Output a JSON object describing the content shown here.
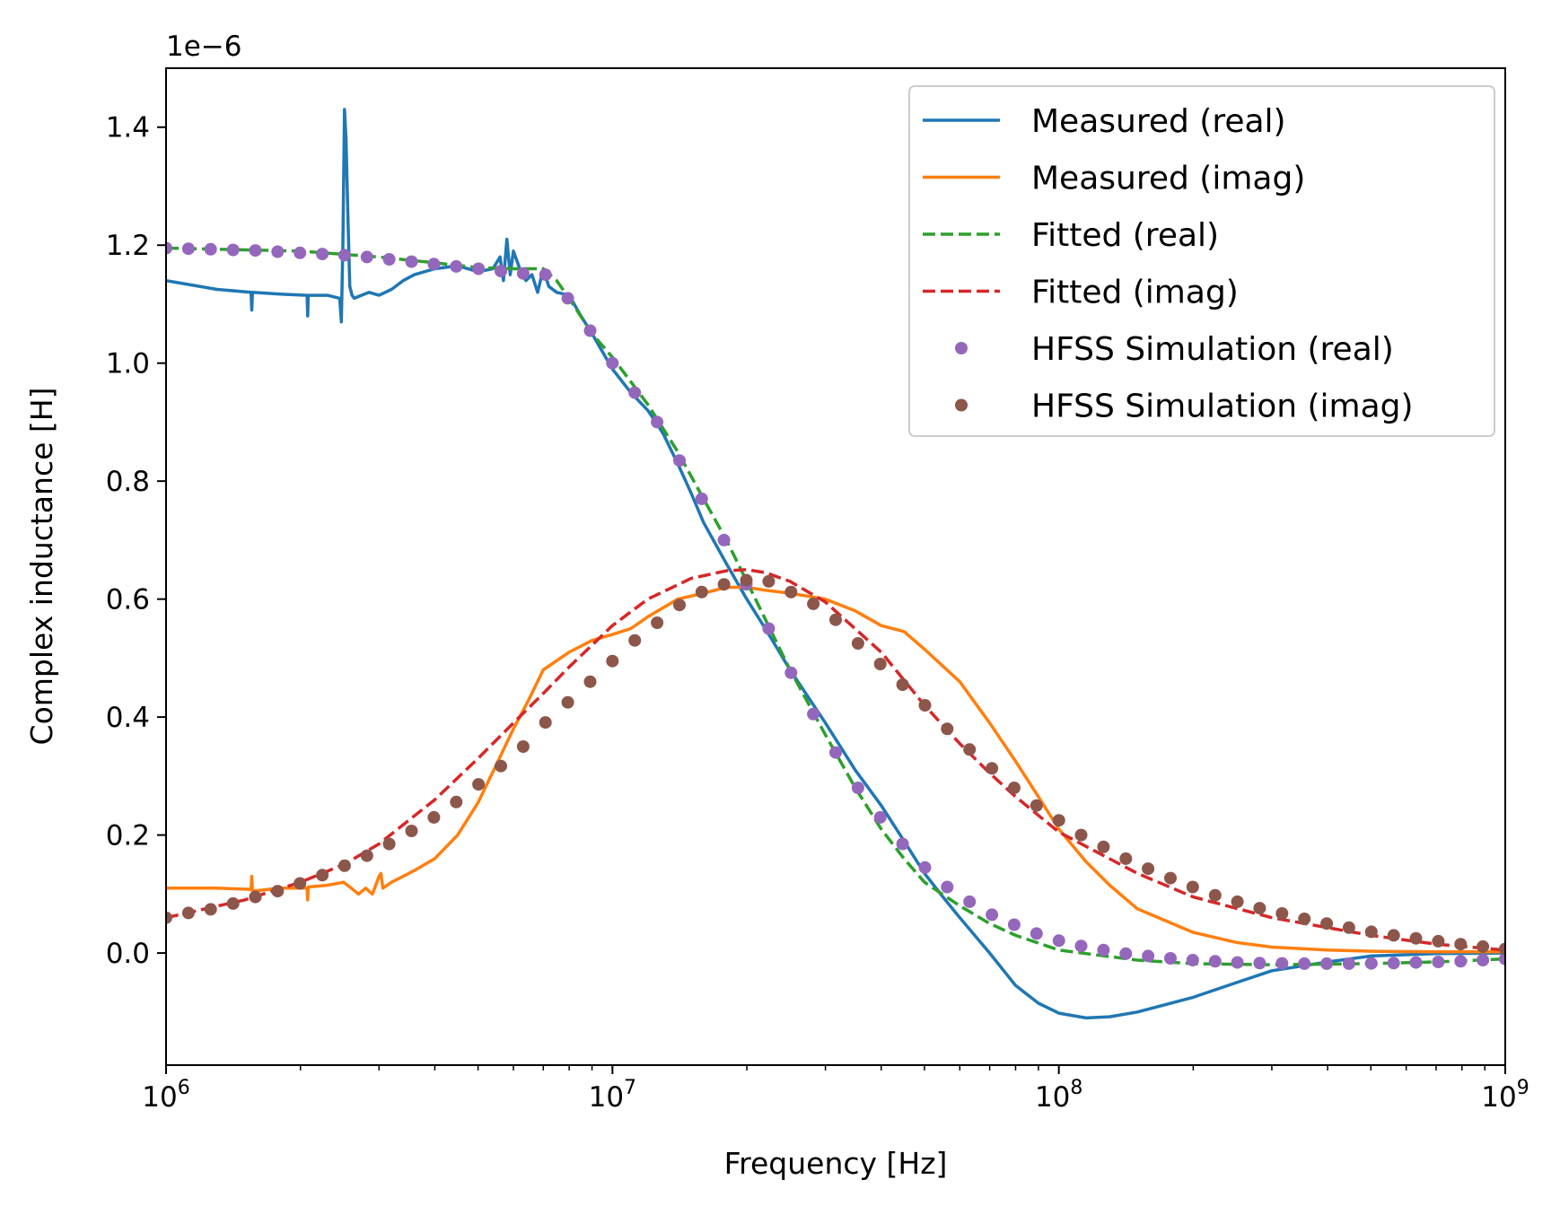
{
  "chart_data": {
    "type": "line",
    "title": "",
    "xlabel": "Frequency [Hz]",
    "ylabel": "Complex inductance [H]",
    "offset_text": "1e−6",
    "x_scale": "log",
    "xlim": [
      1000000,
      1000000000
    ],
    "ylim": [
      -1.9e-07,
      1.5e-06
    ],
    "x_ticks": [
      {
        "value": 1000000,
        "base": "10",
        "exp": "6"
      },
      {
        "value": 10000000,
        "base": "10",
        "exp": "7"
      },
      {
        "value": 100000000,
        "base": "10",
        "exp": "8"
      },
      {
        "value": 1000000000,
        "base": "10",
        "exp": "9"
      }
    ],
    "y_ticks": [
      {
        "value": 0.0,
        "label": "0.0"
      },
      {
        "value": 2e-07,
        "label": "0.2"
      },
      {
        "value": 4e-07,
        "label": "0.4"
      },
      {
        "value": 6e-07,
        "label": "0.6"
      },
      {
        "value": 8e-07,
        "label": "0.8"
      },
      {
        "value": 1e-06,
        "label": "1.0"
      },
      {
        "value": 1.2e-06,
        "label": "1.2"
      },
      {
        "value": 1.4e-06,
        "label": "1.4"
      }
    ],
    "grid": false,
    "legend_position": "top-right",
    "series": [
      {
        "name": "Measured (real)",
        "style": "solid",
        "color": "#1f77b4",
        "x": [
          1000000,
          1300000,
          1550000,
          1556000,
          1562000,
          1800000,
          2070000,
          2076000,
          2082000,
          2300000,
          2450000,
          2470000,
          2490000,
          2510000,
          2530000,
          2555000,
          2580000,
          2610000,
          2640000,
          2700000,
          2850000,
          3000000,
          3200000,
          3400000,
          3600000,
          4000000,
          4500000,
          5000000,
          5400000,
          5600000,
          5700000,
          5800000,
          5900000,
          6000000,
          6200000,
          6400000,
          6600000,
          6800000,
          7000000,
          7200000,
          7500000,
          8000000,
          8500000,
          9000000,
          10000000,
          11000000,
          12000000,
          12500000,
          13000000,
          14000000,
          15000000,
          16000000,
          18000000,
          20000000,
          22000000,
          25000000,
          30000000,
          35000000,
          40000000,
          45000000,
          50000000,
          55000000,
          60000000,
          70000000,
          80000000,
          90000000,
          100000000,
          115000000,
          130000000,
          150000000,
          200000000,
          250000000,
          300000000,
          400000000,
          500000000,
          700000000,
          1000000000
        ],
        "values": [
          1.14e-06,
          1.125e-06,
          1.12e-06,
          1.09e-06,
          1.12e-06,
          1.117e-06,
          1.115e-06,
          1.08e-06,
          1.115e-06,
          1.115e-06,
          1.11e-06,
          1.07e-06,
          1.2e-06,
          1.43e-06,
          1.38e-06,
          1.25e-06,
          1.13e-06,
          1.115e-06,
          1.11e-06,
          1.113e-06,
          1.12e-06,
          1.115e-06,
          1.125e-06,
          1.14e-06,
          1.15e-06,
          1.16e-06,
          1.165e-06,
          1.155e-06,
          1.16e-06,
          1.18e-06,
          1.14e-06,
          1.21e-06,
          1.15e-06,
          1.19e-06,
          1.16e-06,
          1.14e-06,
          1.15e-06,
          1.12e-06,
          1.16e-06,
          1.13e-06,
          1.12e-06,
          1.115e-06,
          1.08e-06,
          1.05e-06,
          9.9e-07,
          9.5e-07,
          9.2e-07,
          9e-07,
          8.8e-07,
          8.3e-07,
          7.8e-07,
          7.3e-07,
          6.6e-07,
          6e-07,
          5.5e-07,
          4.8e-07,
          3.9e-07,
          3.1e-07,
          2.5e-07,
          1.9e-07,
          1.35e-07,
          9.5e-08,
          6e-08,
          0.0,
          -5.5e-08,
          -8.5e-08,
          -1.02e-07,
          -1.1e-07,
          -1.08e-07,
          -1e-07,
          -7.5e-08,
          -5e-08,
          -3e-08,
          -1.5e-08,
          -5e-09,
          -1e-09,
          0.0
        ]
      },
      {
        "name": "Measured (imag)",
        "style": "solid",
        "color": "#ff7f0e",
        "x": [
          1000000,
          1300000,
          1550000,
          1556000,
          1562000,
          1800000,
          2070000,
          2076000,
          2082000,
          2300000,
          2500000,
          2600000,
          2700000,
          2800000,
          2900000,
          3000000,
          3030000,
          3060000,
          3200000,
          3400000,
          3600000,
          4000000,
          4500000,
          5000000,
          5500000,
          6000000,
          6500000,
          7000000,
          8000000,
          9000000,
          10000000,
          11000000,
          12000000,
          14000000,
          16000000,
          18000000,
          20000000,
          22000000,
          25000000,
          30000000,
          35000000,
          40000000,
          45000000,
          50000000,
          60000000,
          70000000,
          80000000,
          90000000,
          100000000,
          115000000,
          130000000,
          150000000,
          200000000,
          250000000,
          300000000,
          400000000,
          500000000,
          700000000,
          1000000000
        ],
        "values": [
          1.1e-07,
          1.1e-07,
          1.08e-07,
          1.3e-07,
          1.05e-07,
          1.1e-07,
          1.1e-07,
          9e-08,
          1.12e-07,
          1.15e-07,
          1.2e-07,
          1.1e-07,
          1e-07,
          1.1e-07,
          1e-07,
          1.3e-07,
          1.35e-07,
          1.1e-07,
          1.2e-07,
          1.3e-07,
          1.4e-07,
          1.6e-07,
          2e-07,
          2.55e-07,
          3.2e-07,
          3.8e-07,
          4.3e-07,
          4.8e-07,
          5.1e-07,
          5.3e-07,
          5.4e-07,
          5.5e-07,
          5.7e-07,
          6e-07,
          6.1e-07,
          6.2e-07,
          6.2e-07,
          6.15e-07,
          6.1e-07,
          6e-07,
          5.8e-07,
          5.55e-07,
          5.45e-07,
          5.15e-07,
          4.6e-07,
          3.9e-07,
          3.25e-07,
          2.65e-07,
          2.1e-07,
          1.55e-07,
          1.15e-07,
          7.5e-08,
          3.5e-08,
          1.8e-08,
          1e-08,
          5e-09,
          3e-09,
          2e-09,
          2e-09
        ]
      },
      {
        "name": "Fitted (real)",
        "style": "dashed",
        "color": "#2ca02c",
        "x": [
          1000000,
          2000000,
          3000000,
          4000000,
          5000000,
          6000000,
          7000000,
          7500000,
          8000000,
          9000000,
          10000000,
          12000000,
          14000000,
          16000000,
          18000000,
          20000000,
          25000000,
          30000000,
          35000000,
          40000000,
          45000000,
          50000000,
          60000000,
          70000000,
          80000000,
          100000000,
          150000000,
          200000000,
          300000000,
          500000000,
          700000000,
          1000000000
        ],
        "values": [
          1.195e-06,
          1.19e-06,
          1.18e-06,
          1.17e-06,
          1.162e-06,
          1.16e-06,
          1.16e-06,
          1.14e-06,
          1.11e-06,
          1.05e-06,
          1.01e-06,
          9.3e-07,
          8.5e-07,
          7.7e-07,
          7e-07,
          6.3e-07,
          4.8e-07,
          3.7e-07,
          2.8e-07,
          2.1e-07,
          1.6e-07,
          1.2e-07,
          8e-08,
          5e-08,
          3e-08,
          5e-09,
          -1.2e-08,
          -1.8e-08,
          -2e-08,
          -1.8e-08,
          -1.5e-08,
          -1e-08
        ]
      },
      {
        "name": "Fitted (imag)",
        "style": "dashed",
        "color": "#d62728",
        "x": [
          1000000,
          1500000,
          2000000,
          2500000,
          3000000,
          4000000,
          5000000,
          6000000,
          7000000,
          8000000,
          10000000,
          12000000,
          15000000,
          18000000,
          20000000,
          22000000,
          25000000,
          30000000,
          40000000,
          50000000,
          60000000,
          70000000,
          80000000,
          100000000,
          150000000,
          200000000,
          300000000,
          500000000,
          700000000,
          1000000000
        ],
        "values": [
          6e-08,
          9e-08,
          1.2e-07,
          1.5e-07,
          1.85e-07,
          2.6e-07,
          3.3e-07,
          3.9e-07,
          4.4e-07,
          4.85e-07,
          5.55e-07,
          6e-07,
          6.35e-07,
          6.48e-07,
          6.5e-07,
          6.45e-07,
          6.3e-07,
          5.95e-07,
          5.1e-07,
          4.2e-07,
          3.55e-07,
          3.05e-07,
          2.65e-07,
          2.05e-07,
          1.35e-07,
          9.5e-08,
          6e-08,
          3e-08,
          1.5e-08,
          5e-09
        ]
      },
      {
        "name": "HFSS Simulation (real)",
        "style": "dots",
        "color": "#9467bd",
        "x": [
          1000000,
          1122000,
          1259000,
          1413000,
          1585000,
          1778000,
          1995000,
          2239000,
          2512000,
          2818000,
          3162000,
          3548000,
          3981000,
          4467000,
          5012000,
          5623000,
          6310000,
          7079000,
          7943000,
          8913000,
          10000000,
          11220000,
          12590000,
          14130000,
          15850000,
          17780000,
          19950000,
          22390000,
          25120000,
          28180000,
          31620000,
          35480000,
          39810000,
          44670000,
          50120000,
          56230000,
          63100000,
          70790000,
          79430000,
          89130000,
          100000000,
          112200000,
          125900000,
          141300000,
          158500000,
          177800000,
          199500000,
          223900000,
          251200000,
          281800000,
          316200000,
          354800000,
          398100000,
          446700000,
          501200000,
          562300000,
          631000000,
          707900000,
          794300000,
          891300000,
          1000000000
        ],
        "values": [
          1.195e-06,
          1.194e-06,
          1.193e-06,
          1.192e-06,
          1.191e-06,
          1.189e-06,
          1.187e-06,
          1.185e-06,
          1.183e-06,
          1.18e-06,
          1.176e-06,
          1.172e-06,
          1.168e-06,
          1.164e-06,
          1.16e-06,
          1.156e-06,
          1.152e-06,
          1.15e-06,
          1.11e-06,
          1.055e-06,
          1e-06,
          9.5e-07,
          9e-07,
          8.35e-07,
          7.7e-07,
          7e-07,
          6.25e-07,
          5.5e-07,
          4.75e-07,
          4.05e-07,
          3.4e-07,
          2.8e-07,
          2.3e-07,
          1.85e-07,
          1.45e-07,
          1.12e-07,
          8.7e-08,
          6.5e-08,
          4.8e-08,
          3.3e-08,
          2.1e-08,
          1.2e-08,
          5e-09,
          -1e-09,
          -5e-09,
          -9e-09,
          -1.2e-08,
          -1.4e-08,
          -1.6e-08,
          -1.7e-08,
          -1.75e-08,
          -1.8e-08,
          -1.8e-08,
          -1.8e-08,
          -1.75e-08,
          -1.7e-08,
          -1.6e-08,
          -1.5e-08,
          -1.4e-08,
          -1.2e-08,
          -1e-08
        ]
      },
      {
        "name": "HFSS Simulation (imag)",
        "style": "dots",
        "color": "#8c564b",
        "x": [
          1000000,
          1122000,
          1259000,
          1413000,
          1585000,
          1778000,
          1995000,
          2239000,
          2512000,
          2818000,
          3162000,
          3548000,
          3981000,
          4467000,
          5012000,
          5623000,
          6310000,
          7079000,
          7943000,
          8913000,
          10000000,
          11220000,
          12590000,
          14130000,
          15850000,
          17780000,
          19950000,
          22390000,
          25120000,
          28180000,
          31620000,
          35480000,
          39810000,
          44670000,
          50120000,
          56230000,
          63100000,
          70790000,
          79430000,
          89130000,
          100000000,
          112200000,
          125900000,
          141300000,
          158500000,
          177800000,
          199500000,
          223900000,
          251200000,
          281800000,
          316200000,
          354800000,
          398100000,
          446700000,
          501200000,
          562300000,
          631000000,
          707900000,
          794300000,
          891300000,
          1000000000
        ],
        "values": [
          6e-08,
          6.8e-08,
          7.4e-08,
          8.4e-08,
          9.5e-08,
          1.05e-07,
          1.18e-07,
          1.32e-07,
          1.48e-07,
          1.65e-07,
          1.85e-07,
          2.07e-07,
          2.3e-07,
          2.56e-07,
          2.86e-07,
          3.17e-07,
          3.5e-07,
          3.91e-07,
          4.25e-07,
          4.6e-07,
          4.95e-07,
          5.3e-07,
          5.6e-07,
          5.9e-07,
          6.12e-07,
          6.25e-07,
          6.32e-07,
          6.3e-07,
          6.12e-07,
          5.92e-07,
          5.65e-07,
          5.25e-07,
          4.9e-07,
          4.55e-07,
          4.2e-07,
          3.8e-07,
          3.45e-07,
          3.13e-07,
          2.8e-07,
          2.5e-07,
          2.25e-07,
          2e-07,
          1.8e-07,
          1.6e-07,
          1.43e-07,
          1.27e-07,
          1.12e-07,
          9.8e-08,
          8.7e-08,
          7.6e-08,
          6.7e-08,
          5.8e-08,
          5e-08,
          4.3e-08,
          3.6e-08,
          3e-08,
          2.5e-08,
          2e-08,
          1.5e-08,
          1.1e-08,
          7e-09
        ]
      }
    ]
  }
}
